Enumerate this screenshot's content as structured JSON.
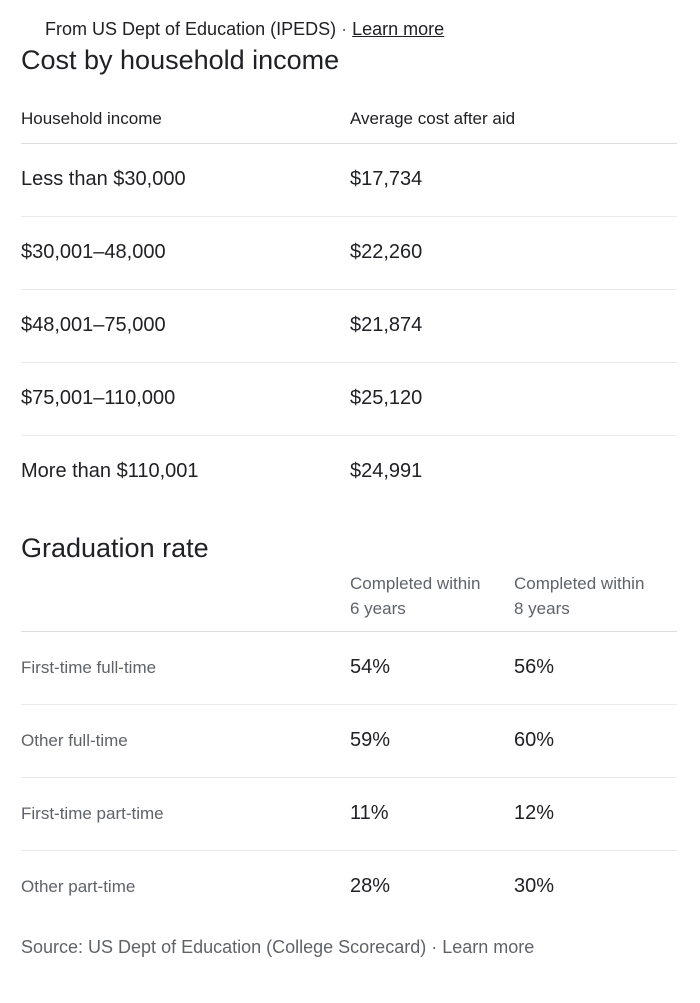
{
  "top_source": {
    "text": "From US Dept of Education (IPEDS)",
    "separator": "·",
    "link": "Learn more"
  },
  "cost": {
    "title": "Cost by household income",
    "headers": [
      "Household income",
      "Average cost after aid"
    ],
    "rows": [
      {
        "income": "Less than $30,000",
        "cost": "$17,734"
      },
      {
        "income": "$30,001–48,000",
        "cost": "$22,260"
      },
      {
        "income": "$48,001–75,000",
        "cost": "$21,874"
      },
      {
        "income": "$75,001–110,000",
        "cost": "$25,120"
      },
      {
        "income": "More than $110,001",
        "cost": "$24,991"
      }
    ]
  },
  "graduation": {
    "title": "Graduation rate",
    "headers": [
      {
        "line1": "Completed within",
        "line2": "6 years"
      },
      {
        "line1": "Completed within",
        "line2": "8 years"
      }
    ],
    "rows": [
      {
        "label": "First-time full-time",
        "six": "54%",
        "eight": "56%"
      },
      {
        "label": "Other full-time",
        "six": "59%",
        "eight": "60%"
      },
      {
        "label": "First-time part-time",
        "six": "11%",
        "eight": "12%"
      },
      {
        "label": "Other part-time",
        "six": "28%",
        "eight": "30%"
      }
    ]
  },
  "bottom_source": {
    "text": "Source: US Dept of Education (College Scorecard)",
    "separator": "·",
    "link": "Learn more"
  }
}
